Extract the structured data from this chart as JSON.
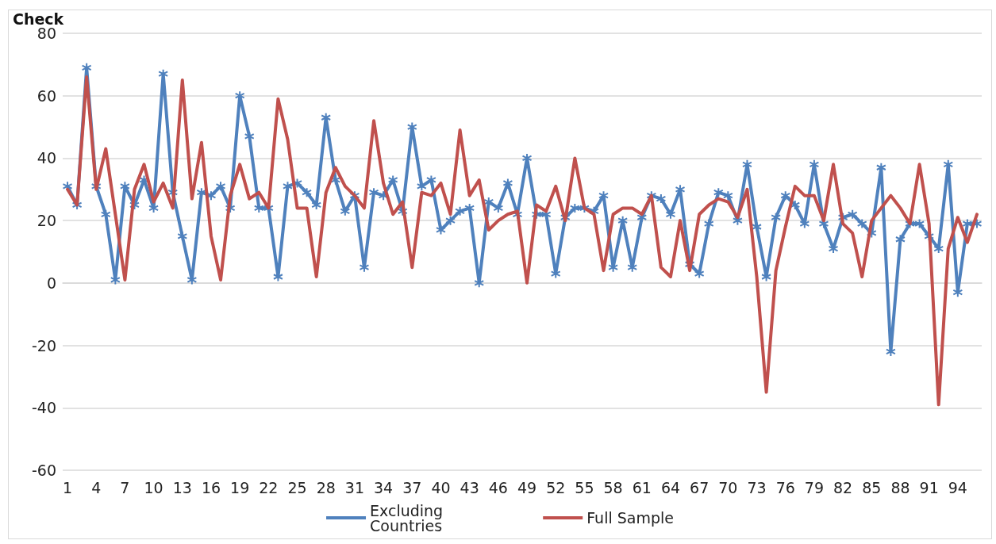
{
  "chart_data": {
    "type": "line",
    "title": "Check",
    "categories": [
      "1",
      null,
      null,
      "4",
      null,
      null,
      "7",
      null,
      null,
      "10",
      null,
      null,
      "13",
      null,
      null,
      "16",
      null,
      null,
      "19",
      null,
      null,
      "22",
      null,
      null,
      "25",
      null,
      null,
      "28",
      null,
      null,
      "31",
      null,
      null,
      "34",
      null,
      null,
      "37",
      null,
      null,
      "40",
      null,
      null,
      "43",
      null,
      null,
      "46",
      null,
      null,
      "49",
      null,
      null,
      "52",
      null,
      null,
      "55",
      null,
      null,
      "58",
      null,
      null,
      "61",
      null,
      null,
      "64",
      null,
      null,
      "67",
      null,
      null,
      "70",
      null,
      null,
      "73",
      null,
      null,
      "76",
      null,
      null,
      "79",
      null,
      null,
      "82",
      null,
      null,
      "85",
      null,
      null,
      "88",
      null,
      null,
      "91",
      null,
      null,
      "94",
      null,
      null
    ],
    "series": [
      {
        "name": "Excluding Countries",
        "color": "#4f81bd",
        "marker": "cross",
        "values": [
          31,
          25,
          69,
          31,
          22,
          1,
          31,
          25,
          33,
          24,
          67,
          29,
          15,
          1,
          29,
          28,
          31,
          24,
          60,
          47,
          24,
          24,
          2,
          31,
          32,
          29,
          25,
          53,
          33,
          23,
          28,
          5,
          29,
          28,
          33,
          23,
          50,
          31,
          33,
          17,
          20,
          23,
          24,
          0,
          26,
          24,
          32,
          22,
          40,
          22,
          22,
          3,
          21,
          24,
          24,
          23,
          28,
          5,
          20,
          5,
          21,
          28,
          27,
          22,
          30,
          6,
          3,
          19,
          29,
          28,
          20,
          38,
          18,
          2,
          21,
          28,
          25,
          19,
          38,
          19,
          11,
          21,
          22,
          19,
          16,
          37,
          -22,
          14,
          19,
          19,
          15,
          11,
          38,
          -3,
          19,
          19
        ]
      },
      {
        "name": "Full Sample",
        "color": "#c0504d",
        "marker": "none",
        "values": [
          30,
          25,
          66,
          30,
          43,
          22,
          1,
          30,
          38,
          26,
          32,
          24,
          65,
          27,
          45,
          15,
          1,
          28,
          38,
          27,
          29,
          24,
          59,
          46,
          24,
          24,
          2,
          29,
          37,
          31,
          28,
          24,
          52,
          32,
          22,
          26,
          5,
          29,
          28,
          32,
          22,
          49,
          28,
          33,
          17,
          20,
          22,
          23,
          0,
          25,
          23,
          31,
          20,
          40,
          24,
          22,
          4,
          22,
          24,
          24,
          22,
          28,
          5,
          2,
          20,
          4,
          22,
          25,
          27,
          26,
          21,
          30,
          2,
          -35,
          4,
          18,
          31,
          28,
          28,
          20,
          38,
          19,
          16,
          2,
          20,
          24,
          28,
          24,
          19,
          38,
          19,
          -39,
          11,
          21,
          13,
          22
        ]
      }
    ],
    "ylim": [
      -60,
      80
    ],
    "yticks": [
      -60,
      -40,
      -20,
      0,
      20,
      40,
      60,
      80
    ],
    "grid": "y",
    "legend": "bottom",
    "line_style": "solid"
  }
}
